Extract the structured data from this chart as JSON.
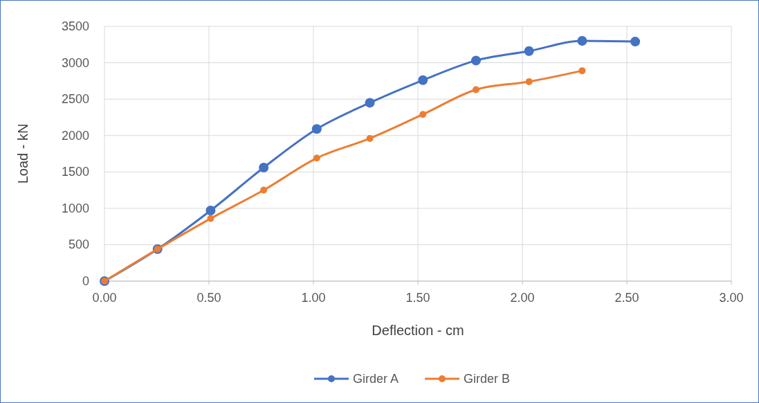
{
  "chart_data": {
    "type": "line",
    "xlabel": "Deflection - cm",
    "ylabel": "Load - kN",
    "xlim": [
      0,
      3
    ],
    "xticks": [
      {
        "value": 0,
        "label": "0.00"
      },
      {
        "value": 0.5,
        "label": "0.50"
      },
      {
        "value": 1,
        "label": "1.00"
      },
      {
        "value": 1.5,
        "label": "1.50"
      },
      {
        "value": 2,
        "label": "2.00"
      },
      {
        "value": 2.5,
        "label": "2.50"
      },
      {
        "value": 3,
        "label": "3.00"
      }
    ],
    "ylim": [
      0,
      3500
    ],
    "yticks": [
      0,
      500,
      1000,
      1500,
      2000,
      2500,
      3000,
      3500
    ],
    "grid": true,
    "legend": "bottom",
    "marker": "circle",
    "series": [
      {
        "name": "Girder A",
        "color": "#4472c4",
        "x": [
          0,
          0.254,
          0.508,
          0.762,
          1.016,
          1.27,
          1.524,
          1.778,
          2.032,
          2.286,
          2.54
        ],
        "values": [
          0,
          440,
          970,
          1560,
          2090,
          2450,
          2760,
          3030,
          3160,
          3300,
          3290
        ]
      },
      {
        "name": "Girder B",
        "color": "#ed7d31",
        "x": [
          0,
          0.254,
          0.508,
          0.762,
          1.016,
          1.27,
          1.524,
          1.778,
          2.032,
          2.286
        ],
        "values": [
          0,
          440,
          860,
          1250,
          1690,
          1960,
          2290,
          2630,
          2740,
          2890
        ]
      }
    ]
  }
}
